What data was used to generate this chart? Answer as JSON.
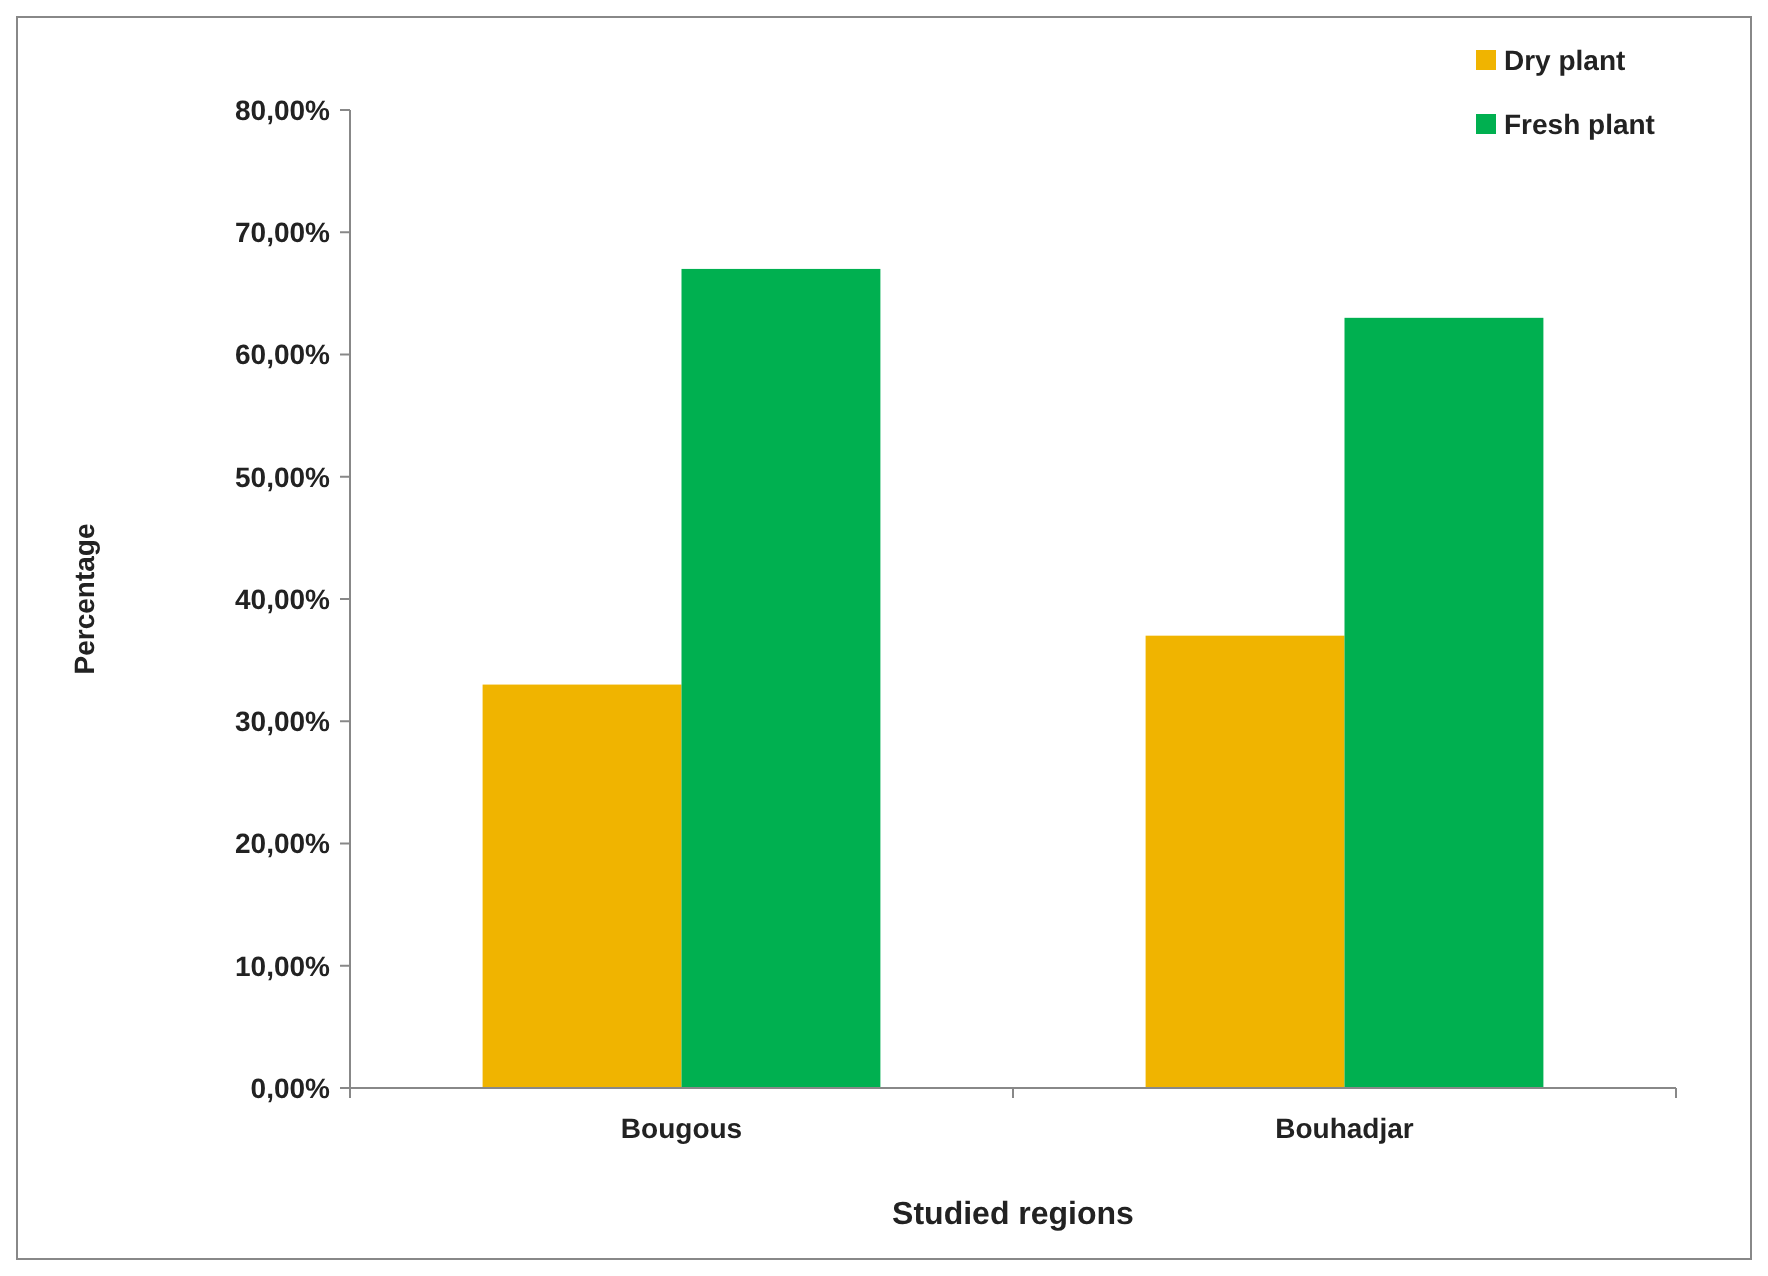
{
  "chart_data": {
    "type": "bar",
    "xlabel": "Studied regions",
    "ylabel": "Percentage",
    "categories": [
      "Bougous",
      "Bouhadjar"
    ],
    "series": [
      {
        "name": "Dry plant",
        "color": "#f0b400",
        "values": [
          33,
          37
        ]
      },
      {
        "name": "Fresh plant",
        "color": "#00b050",
        "values": [
          67,
          63
        ]
      }
    ],
    "ylim": [
      0,
      80
    ],
    "yticks": [
      {
        "value": 0,
        "label": "0,00%"
      },
      {
        "value": 10,
        "label": "10,00%"
      },
      {
        "value": 20,
        "label": "20,00%"
      },
      {
        "value": 30,
        "label": "30,00%"
      },
      {
        "value": 40,
        "label": "40,00%"
      },
      {
        "value": 50,
        "label": "50,00%"
      },
      {
        "value": 60,
        "label": "60,00%"
      },
      {
        "value": 70,
        "label": "70,00%"
      },
      {
        "value": 80,
        "label": "80,00%"
      }
    ],
    "grid": false,
    "legend": "top right"
  }
}
